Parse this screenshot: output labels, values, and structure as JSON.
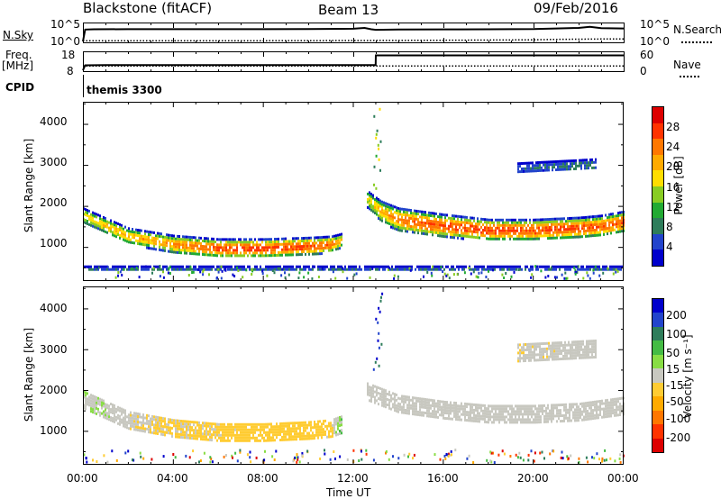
{
  "header": {
    "title": "Blackstone (fitACF)",
    "beam": "Beam 13",
    "date": "09/Feb/2016"
  },
  "aux": {
    "nsky_label": "N.Sky",
    "nsearch_label": "N.Search",
    "nsky_ticks": [
      "10^5",
      "10^0"
    ],
    "nsearch_ticks": [
      "10^5",
      "10^0"
    ],
    "freq_label": "Freq.",
    "freq_unit": "[MHz]",
    "freq_ticks": [
      "18",
      "8"
    ],
    "nave_label": "Nave",
    "nave_ticks": [
      "60",
      "0"
    ],
    "cpid_label": "CPID",
    "cpid_text": "themis 3300"
  },
  "colors": {
    "power_scale": [
      "#0000cc",
      "#2244cc",
      "#2e7d5b",
      "#22aa33",
      "#88cc22",
      "#ffdd00",
      "#ffaa00",
      "#ff7700",
      "#ff3300",
      "#dd0000"
    ],
    "velocity_scale": [
      "#0000cc",
      "#2244cc",
      "#2e7d5b",
      "#44bb44",
      "#88dd44",
      "#c8c8c0",
      "#ffcc33",
      "#ffaa00",
      "#ff7700",
      "#ff3300",
      "#dd0000"
    ],
    "ground_scatter": "#c8c8c0"
  },
  "chart_data": [
    {
      "type": "line",
      "panel": "sky-noise",
      "ylabel": "N.Sky",
      "y2label": "N.Search",
      "y_scale": "log",
      "ylim": [
        1,
        100000
      ],
      "xlim": [
        0,
        24
      ],
      "yticks": [
        "10^5",
        "10^0"
      ],
      "series": [
        {
          "name": "N.Sky",
          "style": "solid",
          "x": [
            0,
            0.1,
            0.5,
            2,
            4,
            6,
            8,
            10,
            12,
            12.5,
            12.8,
            13,
            14,
            16,
            18,
            20,
            21,
            22,
            22.5,
            23,
            24
          ],
          "y": [
            1,
            3000,
            3500,
            3800,
            3700,
            3900,
            3800,
            4000,
            5000,
            9000,
            3500,
            2500,
            3200,
            3300,
            3500,
            4000,
            6000,
            9000,
            20000,
            8000,
            6000
          ]
        },
        {
          "name": "N.Search",
          "style": "dotted",
          "x": [
            0,
            4,
            8,
            12,
            16,
            20,
            21,
            22,
            23,
            24
          ],
          "y": [
            1.5,
            1.6,
            1.6,
            1.8,
            2.2,
            3,
            4,
            4.5,
            5,
            5
          ]
        }
      ]
    },
    {
      "type": "line",
      "panel": "frequency-nave",
      "ylabel": "Freq. [MHz]",
      "y2label": "Nave",
      "ylim": [
        8,
        18
      ],
      "y2lim": [
        0,
        60
      ],
      "xlim": [
        0,
        24
      ],
      "yticks": [
        "18",
        "8"
      ],
      "y2ticks": [
        "60",
        "0"
      ],
      "series": [
        {
          "name": "Freq.",
          "style": "solid",
          "x": [
            0,
            0.1,
            1,
            12.99,
            13,
            24
          ],
          "y": [
            8,
            10.9,
            11.0,
            11.0,
            16.7,
            16.7
          ]
        },
        {
          "name": "Nave",
          "style": "dotted",
          "axis": "right",
          "x": [
            0,
            24
          ],
          "y": [
            15,
            15
          ]
        }
      ]
    },
    {
      "type": "heatmap",
      "panel": "power",
      "xlabel": "",
      "ylabel": "Slant Range [km]",
      "xlim": [
        0,
        24
      ],
      "ylim": [
        180,
        4550
      ],
      "yticks": [
        1000,
        2000,
        3000,
        4000
      ],
      "colorbar": {
        "label": "Power [dB]",
        "range": [
          0,
          32
        ],
        "ticks": [
          4,
          8,
          12,
          16,
          20,
          24,
          28
        ]
      },
      "scatter_regions": [
        {
          "name": "morning band",
          "t": [
            0,
            2,
            4,
            6,
            8,
            10,
            11,
            11.5
          ],
          "range_center": [
            1800,
            1300,
            1100,
            1000,
            1000,
            1050,
            1100,
            1200
          ],
          "thickness_km": [
            350,
            380,
            420,
            450,
            450,
            420,
            380,
            320
          ],
          "peak_power_db": [
            18,
            20,
            22,
            26,
            27,
            26,
            24,
            18
          ]
        },
        {
          "name": "afternoon band",
          "t": [
            12.6,
            13.2,
            14,
            16,
            18,
            20,
            22,
            23,
            24
          ],
          "range_center": [
            2200,
            1900,
            1700,
            1550,
            1450,
            1450,
            1500,
            1550,
            1650
          ],
          "thickness_km": [
            400,
            500,
            550,
            550,
            500,
            500,
            500,
            500,
            500
          ],
          "peak_power_db": [
            16,
            20,
            24,
            26,
            27,
            26,
            26,
            25,
            26
          ]
        },
        {
          "name": "near range",
          "t": [
            0,
            24
          ],
          "range_center": [
            500,
            500
          ],
          "thickness_km": [
            120,
            120
          ],
          "peak_power_db": [
            6,
            6
          ]
        },
        {
          "name": "far evening",
          "t": [
            19.3,
            22.8
          ],
          "range_center": [
            2950,
            3050
          ],
          "thickness_km": [
            250,
            250
          ],
          "peak_power_db": [
            6,
            8
          ]
        }
      ]
    },
    {
      "type": "heatmap",
      "panel": "velocity",
      "xlabel": "Time UT",
      "ylabel": "Slant Range [km]",
      "xlim": [
        0,
        24
      ],
      "ylim": [
        180,
        4550
      ],
      "yticks": [
        1000,
        2000,
        3000,
        4000
      ],
      "xticks": [
        "00:00",
        "04:00",
        "08:00",
        "12:00",
        "16:00",
        "20:00",
        "00:00"
      ],
      "colorbar": {
        "label": "Velocity [m s⁻¹]",
        "range": [
          -250,
          250
        ],
        "ticks": [
          200,
          100,
          50,
          15,
          -15,
          -50,
          -100,
          -200
        ]
      },
      "scatter_regions": [
        {
          "name": "morning band",
          "t": [
            0,
            2,
            4,
            6,
            8,
            10,
            11,
            11.5
          ],
          "range_center": [
            1800,
            1300,
            1100,
            1000,
            1000,
            1050,
            1100,
            1200
          ],
          "velocity_ms": [
            0,
            -40,
            -55,
            -60,
            -70,
            -75,
            -60,
            30
          ]
        },
        {
          "name": "afternoon band",
          "t": [
            12.6,
            14,
            16,
            18,
            20,
            22,
            24
          ],
          "range_center": [
            2000,
            1700,
            1550,
            1450,
            1450,
            1500,
            1650
          ],
          "velocity_ms": [
            0,
            0,
            0,
            0,
            0,
            0,
            0
          ],
          "ground_scatter": true
        },
        {
          "name": "far evening",
          "t": [
            19.3,
            22.8
          ],
          "range_center": [
            2950,
            3050
          ],
          "velocity_ms": [
            -40,
            -30
          ]
        }
      ]
    }
  ]
}
